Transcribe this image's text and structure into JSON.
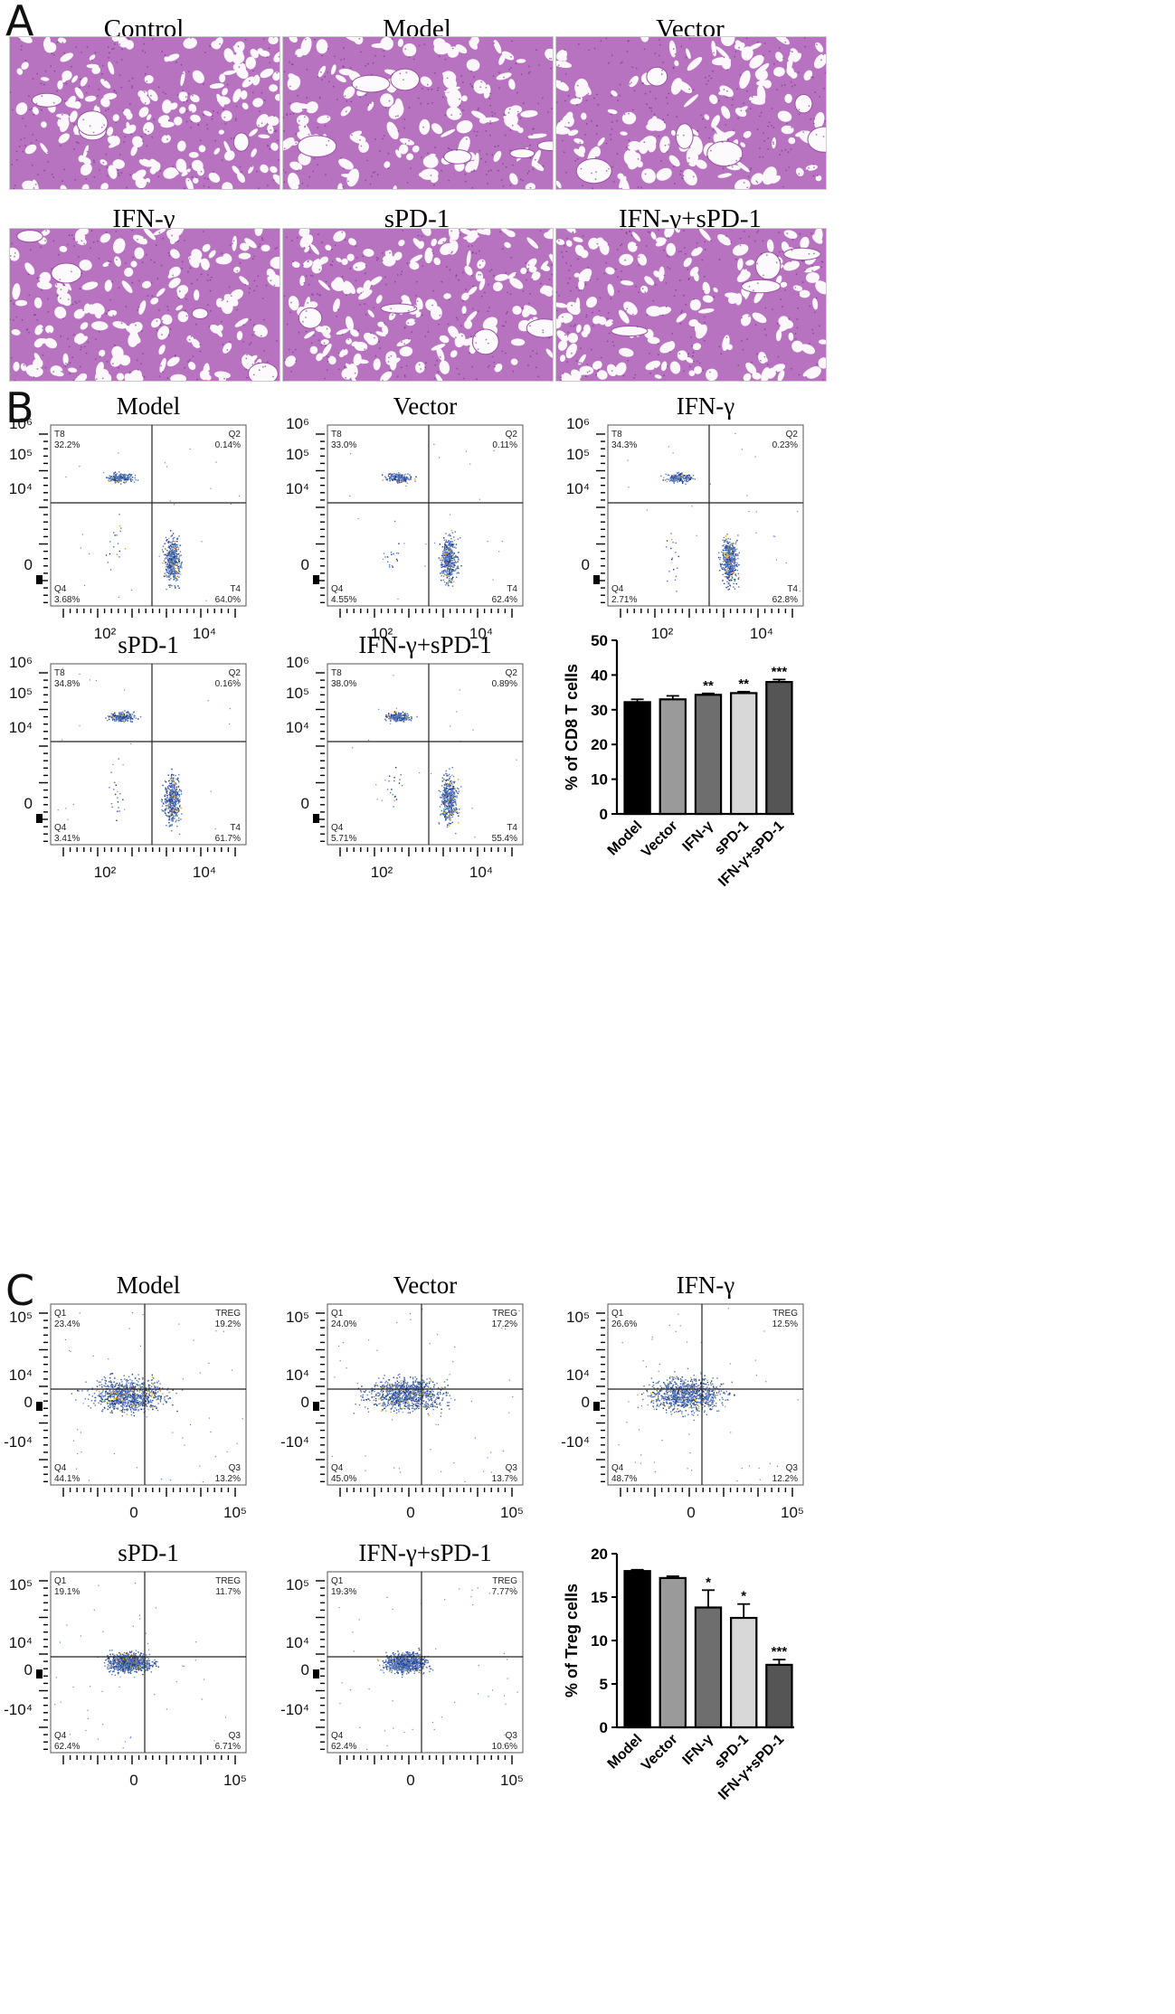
{
  "panel_letters": [
    "A",
    "B",
    "C"
  ],
  "panelA": {
    "images": [
      {
        "title": "Control"
      },
      {
        "title": "Model"
      },
      {
        "title": "Vector"
      },
      {
        "title": "IFN-γ"
      },
      {
        "title": "sPD-1"
      },
      {
        "title": "IFN-γ+sPD-1"
      }
    ]
  },
  "panelB": {
    "x_ticks": [
      "10²",
      "10⁴"
    ],
    "y_ticks": [
      "10⁶",
      "10⁵",
      "10⁴",
      "0"
    ],
    "plots": [
      {
        "title": "Model",
        "q": {
          "tl": "T8",
          "tl_v": "32.2%",
          "tr": "Q2",
          "tr_v": "0.14%",
          "bl": "Q4",
          "bl_v": "3.68%",
          "br": "T4",
          "br_v": "64.0%"
        }
      },
      {
        "title": "Vector",
        "q": {
          "tl": "T8",
          "tl_v": "33.0%",
          "tr": "Q2",
          "tr_v": "0.11%",
          "bl": "Q4",
          "bl_v": "4.55%",
          "br": "T4",
          "br_v": "62.4%"
        }
      },
      {
        "title": "IFN-γ",
        "q": {
          "tl": "T8",
          "tl_v": "34.3%",
          "tr": "Q2",
          "tr_v": "0.23%",
          "bl": "Q4",
          "bl_v": "2.71%",
          "br": "T4",
          "br_v": "62.8%"
        }
      },
      {
        "title": "sPD-1",
        "q": {
          "tl": "T8",
          "tl_v": "34.8%",
          "tr": "Q2",
          "tr_v": "0.16%",
          "bl": "Q4",
          "bl_v": "3.41%",
          "br": "T4",
          "br_v": "61.7%"
        }
      },
      {
        "title": "IFN-γ+sPD-1",
        "q": {
          "tl": "T8",
          "tl_v": "38.0%",
          "tr": "Q2",
          "tr_v": "0.89%",
          "bl": "Q4",
          "bl_v": "5.71%",
          "br": "T4",
          "br_v": "55.4%"
        }
      }
    ]
  },
  "panelC": {
    "x_ticks": [
      "0",
      "10⁵"
    ],
    "y_ticks": [
      "10⁵",
      "10⁴",
      "0",
      "-10⁴"
    ],
    "plots": [
      {
        "title": "Model",
        "q": {
          "tl": "Q1",
          "tl_v": "23.4%",
          "tr": "TREG",
          "tr_v": "19.2%",
          "bl": "Q4",
          "bl_v": "44.1%",
          "br": "Q3",
          "br_v": "13.2%"
        }
      },
      {
        "title": "Vector",
        "q": {
          "tl": "Q1",
          "tl_v": "24.0%",
          "tr": "TREG",
          "tr_v": "17.2%",
          "bl": "Q4",
          "bl_v": "45.0%",
          "br": "Q3",
          "br_v": "13.7%"
        }
      },
      {
        "title": "IFN-γ",
        "q": {
          "tl": "Q1",
          "tl_v": "26.6%",
          "tr": "TREG",
          "tr_v": "12.5%",
          "bl": "Q4",
          "bl_v": "48.7%",
          "br": "Q3",
          "br_v": "12.2%"
        }
      },
      {
        "title": "sPD-1",
        "q": {
          "tl": "Q1",
          "tl_v": "19.1%",
          "tr": "TREG",
          "tr_v": "11.7%",
          "bl": "Q4",
          "bl_v": "62.4%",
          "br": "Q3",
          "br_v": "6.71%"
        }
      },
      {
        "title": "IFN-γ+sPD-1",
        "q": {
          "tl": "Q1",
          "tl_v": "19.3%",
          "tr": "TREG",
          "tr_v": "7.77%",
          "bl": "Q4",
          "bl_v": "62.4%",
          "br": "Q3",
          "br_v": "10.6%"
        }
      }
    ]
  },
  "chart_data": [
    {
      "type": "bar",
      "categories": [
        "Model",
        "Vector",
        "IFN-γ",
        "sPD-1",
        "IFN-γ+sPD-1"
      ],
      "values": [
        32.2,
        33.0,
        34.3,
        34.8,
        38.0
      ],
      "errors": [
        0.8,
        1.0,
        0.4,
        0.4,
        0.7
      ],
      "significance": [
        "",
        "",
        "**",
        "**",
        "***"
      ],
      "colors": [
        "#000000",
        "#9a9a9a",
        "#6e6e6e",
        "#d8d8d8",
        "#555555"
      ],
      "ylabel": "% of CD8 T cells",
      "ylim": [
        0,
        50
      ],
      "yticks": [
        0,
        10,
        20,
        30,
        40,
        50
      ]
    },
    {
      "type": "bar",
      "categories": [
        "Model",
        "Vector",
        "IFN-γ",
        "sPD-1",
        "IFN-γ+sPD-1"
      ],
      "values": [
        18.0,
        17.2,
        13.8,
        12.6,
        7.2
      ],
      "errors": [
        0.15,
        0.2,
        2.0,
        1.6,
        0.6
      ],
      "significance": [
        "",
        "",
        "*",
        "*",
        "***"
      ],
      "colors": [
        "#000000",
        "#9a9a9a",
        "#6e6e6e",
        "#d8d8d8",
        "#555555"
      ],
      "ylabel": "% of Treg cells",
      "ylim": [
        0,
        20
      ],
      "yticks": [
        0,
        5,
        10,
        15,
        20
      ]
    }
  ]
}
